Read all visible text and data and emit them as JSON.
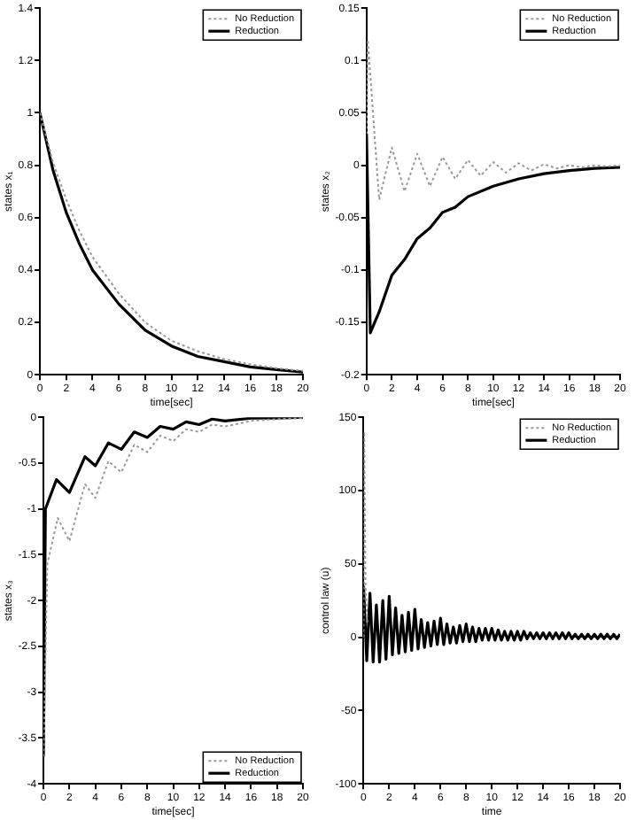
{
  "chart_data": [
    {
      "type": "line",
      "xlabel": "time[sec]",
      "ylabel": "states x₁",
      "xlim": [
        0,
        20
      ],
      "xticks": [
        0,
        2,
        4,
        6,
        8,
        10,
        12,
        14,
        16,
        18,
        20
      ],
      "ylim": [
        0,
        1.4
      ],
      "yticks": [
        0,
        0.2,
        0.4,
        0.6,
        0.8,
        1,
        1.2,
        1.4
      ],
      "legend": "top right",
      "marker": "none",
      "grid": false,
      "series": [
        {
          "name": "No Reduction",
          "color": "#999999",
          "line_style": "dotted",
          "x": [
            0,
            1,
            2,
            3,
            4,
            6,
            8,
            10,
            12,
            14,
            16,
            18,
            20
          ],
          "values": [
            1,
            0.81,
            0.67,
            0.55,
            0.45,
            0.31,
            0.2,
            0.13,
            0.09,
            0.06,
            0.04,
            0.025,
            0.015
          ]
        },
        {
          "name": "Reduction",
          "color": "#000000",
          "line_style": "solid",
          "x": [
            0,
            1,
            2,
            3,
            4,
            6,
            8,
            10,
            12,
            14,
            16,
            18,
            20
          ],
          "values": [
            1,
            0.78,
            0.62,
            0.5,
            0.4,
            0.27,
            0.17,
            0.11,
            0.07,
            0.05,
            0.03,
            0.02,
            0.01
          ]
        }
      ]
    },
    {
      "type": "line",
      "xlabel": "time[sec]",
      "ylabel": "states x₂",
      "xlim": [
        0,
        20
      ],
      "xticks": [
        0,
        2,
        4,
        6,
        8,
        10,
        12,
        14,
        16,
        18,
        20
      ],
      "ylim": [
        -0.2,
        0.15
      ],
      "yticks": [
        -0.2,
        -0.15,
        -0.1,
        -0.05,
        0,
        0.05,
        0.1,
        0.15
      ],
      "legend": "top right",
      "marker": "none",
      "grid": false,
      "series": [
        {
          "name": "No Reduction",
          "color": "#999999",
          "line_style": "dotted",
          "x": [
            0,
            0.1,
            1,
            2,
            3,
            4,
            5,
            6,
            7,
            8,
            9,
            10,
            11,
            12,
            13,
            14,
            15,
            16,
            17,
            18,
            19,
            20
          ],
          "values": [
            0.03,
            0.12,
            -0.033,
            0.017,
            -0.025,
            0.011,
            -0.02,
            0.008,
            -0.013,
            0.005,
            -0.01,
            0.003,
            -0.007,
            0.002,
            -0.005,
            0.001,
            -0.003,
            0,
            -0.002,
            0,
            -0.001,
            0
          ]
        },
        {
          "name": "Reduction",
          "color": "#000000",
          "line_style": "solid",
          "x": [
            0,
            0.3,
            1,
            2,
            3,
            4,
            5,
            6,
            7,
            8,
            10,
            12,
            14,
            16,
            18,
            20
          ],
          "values": [
            0.03,
            -0.16,
            -0.14,
            -0.105,
            -0.09,
            -0.07,
            -0.06,
            -0.045,
            -0.04,
            -0.03,
            -0.02,
            -0.013,
            -0.008,
            -0.005,
            -0.003,
            -0.002
          ]
        }
      ]
    },
    {
      "type": "line",
      "xlabel": "time[sec]",
      "ylabel": "states x₃",
      "xlim": [
        0,
        20
      ],
      "xticks": [
        0,
        2,
        4,
        6,
        8,
        10,
        12,
        14,
        16,
        18,
        20
      ],
      "ylim": [
        -4,
        0
      ],
      "yticks": [
        -4,
        -3.5,
        -3,
        -2.5,
        -2,
        -1.5,
        -1,
        -0.5,
        0
      ],
      "legend": "bottom right",
      "marker": "none",
      "grid": false,
      "series": [
        {
          "name": "No Reduction",
          "color": "#999999",
          "line_style": "dotted",
          "x": [
            0,
            0.3,
            1.1,
            2,
            3.2,
            4,
            5,
            6,
            7,
            8,
            9,
            10,
            11,
            12,
            13,
            14,
            16,
            18,
            20
          ],
          "values": [
            -3.7,
            -1.6,
            -1.1,
            -1.35,
            -0.73,
            -0.88,
            -0.48,
            -0.6,
            -0.3,
            -0.38,
            -0.2,
            -0.26,
            -0.13,
            -0.16,
            -0.08,
            -0.1,
            -0.04,
            -0.02,
            -0.01
          ]
        },
        {
          "name": "Reduction",
          "color": "#000000",
          "line_style": "solid",
          "x": [
            0,
            0.15,
            1,
            2,
            3.2,
            4,
            5,
            6,
            7,
            8,
            9,
            10,
            11,
            12,
            13,
            14,
            16,
            18,
            20
          ],
          "values": [
            -3.7,
            -1,
            -0.68,
            -0.82,
            -0.43,
            -0.53,
            -0.28,
            -0.35,
            -0.16,
            -0.22,
            -0.1,
            -0.13,
            -0.05,
            -0.08,
            -0.02,
            -0.04,
            -0.01,
            -0.01,
            0
          ]
        }
      ]
    },
    {
      "type": "line",
      "xlabel": "time",
      "ylabel": "control law (u)",
      "xlim": [
        0,
        20
      ],
      "xticks": [
        0,
        2,
        4,
        6,
        8,
        10,
        12,
        14,
        16,
        18,
        20
      ],
      "ylim": [
        -100,
        150
      ],
      "yticks": [
        -100,
        -50,
        0,
        50,
        100,
        150
      ],
      "legend": "top right",
      "marker": "none",
      "grid": false,
      "series": [
        {
          "name": "No Reduction",
          "color": "#999999",
          "line_style": "dotted",
          "x": [
            0,
            0.05,
            0.15,
            0.3
          ],
          "values": [
            0,
            140,
            35,
            10
          ]
        },
        {
          "name": "Reduction",
          "color": "#000000",
          "line_style": "solid",
          "x": [
            0,
            0.25,
            0.5,
            0.75,
            1,
            1.25,
            1.5,
            1.75,
            2,
            2.25,
            2.5,
            2.75,
            3,
            3.25,
            3.5,
            3.75,
            4,
            4.25,
            4.5,
            4.75,
            5,
            5.25,
            5.5,
            5.75,
            6,
            6.25,
            6.5,
            6.75,
            7,
            7.25,
            7.5,
            7.75,
            8,
            8.25,
            8.5,
            8.75,
            9,
            9.25,
            9.5,
            9.75,
            10,
            10.25,
            10.5,
            10.75,
            11,
            11.25,
            11.5,
            11.75,
            12,
            12.25,
            12.5,
            12.75,
            13,
            13.25,
            13.5,
            13.75,
            14,
            14.25,
            14.5,
            14.75,
            15,
            15.25,
            15.5,
            15.75,
            16,
            16.25,
            16.5,
            16.75,
            17,
            17.25,
            17.5,
            17.75,
            18,
            18.25,
            18.5,
            18.75,
            19,
            19.25,
            19.5,
            19.75,
            20
          ],
          "values": [
            35,
            -16,
            30,
            -17,
            22,
            -17,
            25,
            -15,
            28,
            -12,
            20,
            -11,
            15,
            -10,
            17,
            -9,
            19,
            -8,
            12,
            -7,
            10,
            -6,
            11,
            -5,
            13,
            -5,
            9,
            -4,
            7,
            -4,
            8,
            -3,
            9,
            -3,
            7,
            -3,
            6,
            -2,
            6,
            -2,
            6,
            -2,
            5,
            -2,
            4,
            -2,
            4,
            -2,
            4,
            -2,
            4,
            -1,
            3,
            -1,
            3,
            -1,
            3,
            -1,
            3,
            -1,
            3,
            -1,
            3,
            -1,
            3,
            -1,
            2,
            -1,
            2,
            -1,
            2,
            -1,
            2,
            -1,
            2,
            -1,
            2,
            -1,
            2,
            -1,
            2
          ]
        }
      ]
    }
  ]
}
